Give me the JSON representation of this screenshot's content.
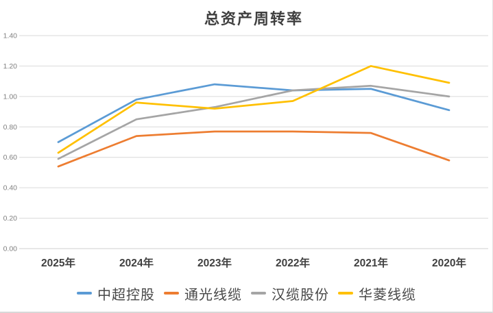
{
  "title": "总资产周转率",
  "colors": {
    "series_blue": "#5B9BD5",
    "series_orange": "#ED7D31",
    "series_gray": "#A5A5A5",
    "series_yellow": "#FFC000",
    "gridline": "#D9D9D9",
    "axis_line": "#CFCFCF",
    "title_text": "#3F3F3F",
    "x_label_text": "#404040",
    "y_label_text": "#808080",
    "legend_text": "#474747"
  },
  "chart_data": {
    "type": "line",
    "title": "总资产周转率",
    "categories": [
      "2025年",
      "2024年",
      "2023年",
      "2022年",
      "2021年",
      "2020年"
    ],
    "series": [
      {
        "name": "中超控股",
        "color": "#5B9BD5",
        "values": [
          0.7,
          0.98,
          1.08,
          1.04,
          1.05,
          0.91
        ]
      },
      {
        "name": "通光线缆",
        "color": "#ED7D31",
        "values": [
          0.54,
          0.74,
          0.77,
          0.77,
          0.76,
          0.58
        ]
      },
      {
        "name": "汉缆股份",
        "color": "#A5A5A5",
        "values": [
          0.59,
          0.85,
          0.93,
          1.04,
          1.07,
          1.0
        ]
      },
      {
        "name": "华菱线缆",
        "color": "#FFC000",
        "values": [
          0.63,
          0.96,
          0.92,
          0.97,
          1.2,
          1.09
        ]
      }
    ],
    "xlabel": "",
    "ylabel": "",
    "ylim": [
      0.0,
      1.4
    ],
    "y_ticks": [
      "1.40",
      "1.20",
      "1.00",
      "0.80",
      "0.60",
      "0.40",
      "0.20",
      "0.00"
    ],
    "y_tick_values": [
      1.4,
      1.2,
      1.0,
      0.8,
      0.6,
      0.4,
      0.2,
      0.0
    ],
    "grid": true,
    "legend_position": "bottom"
  }
}
